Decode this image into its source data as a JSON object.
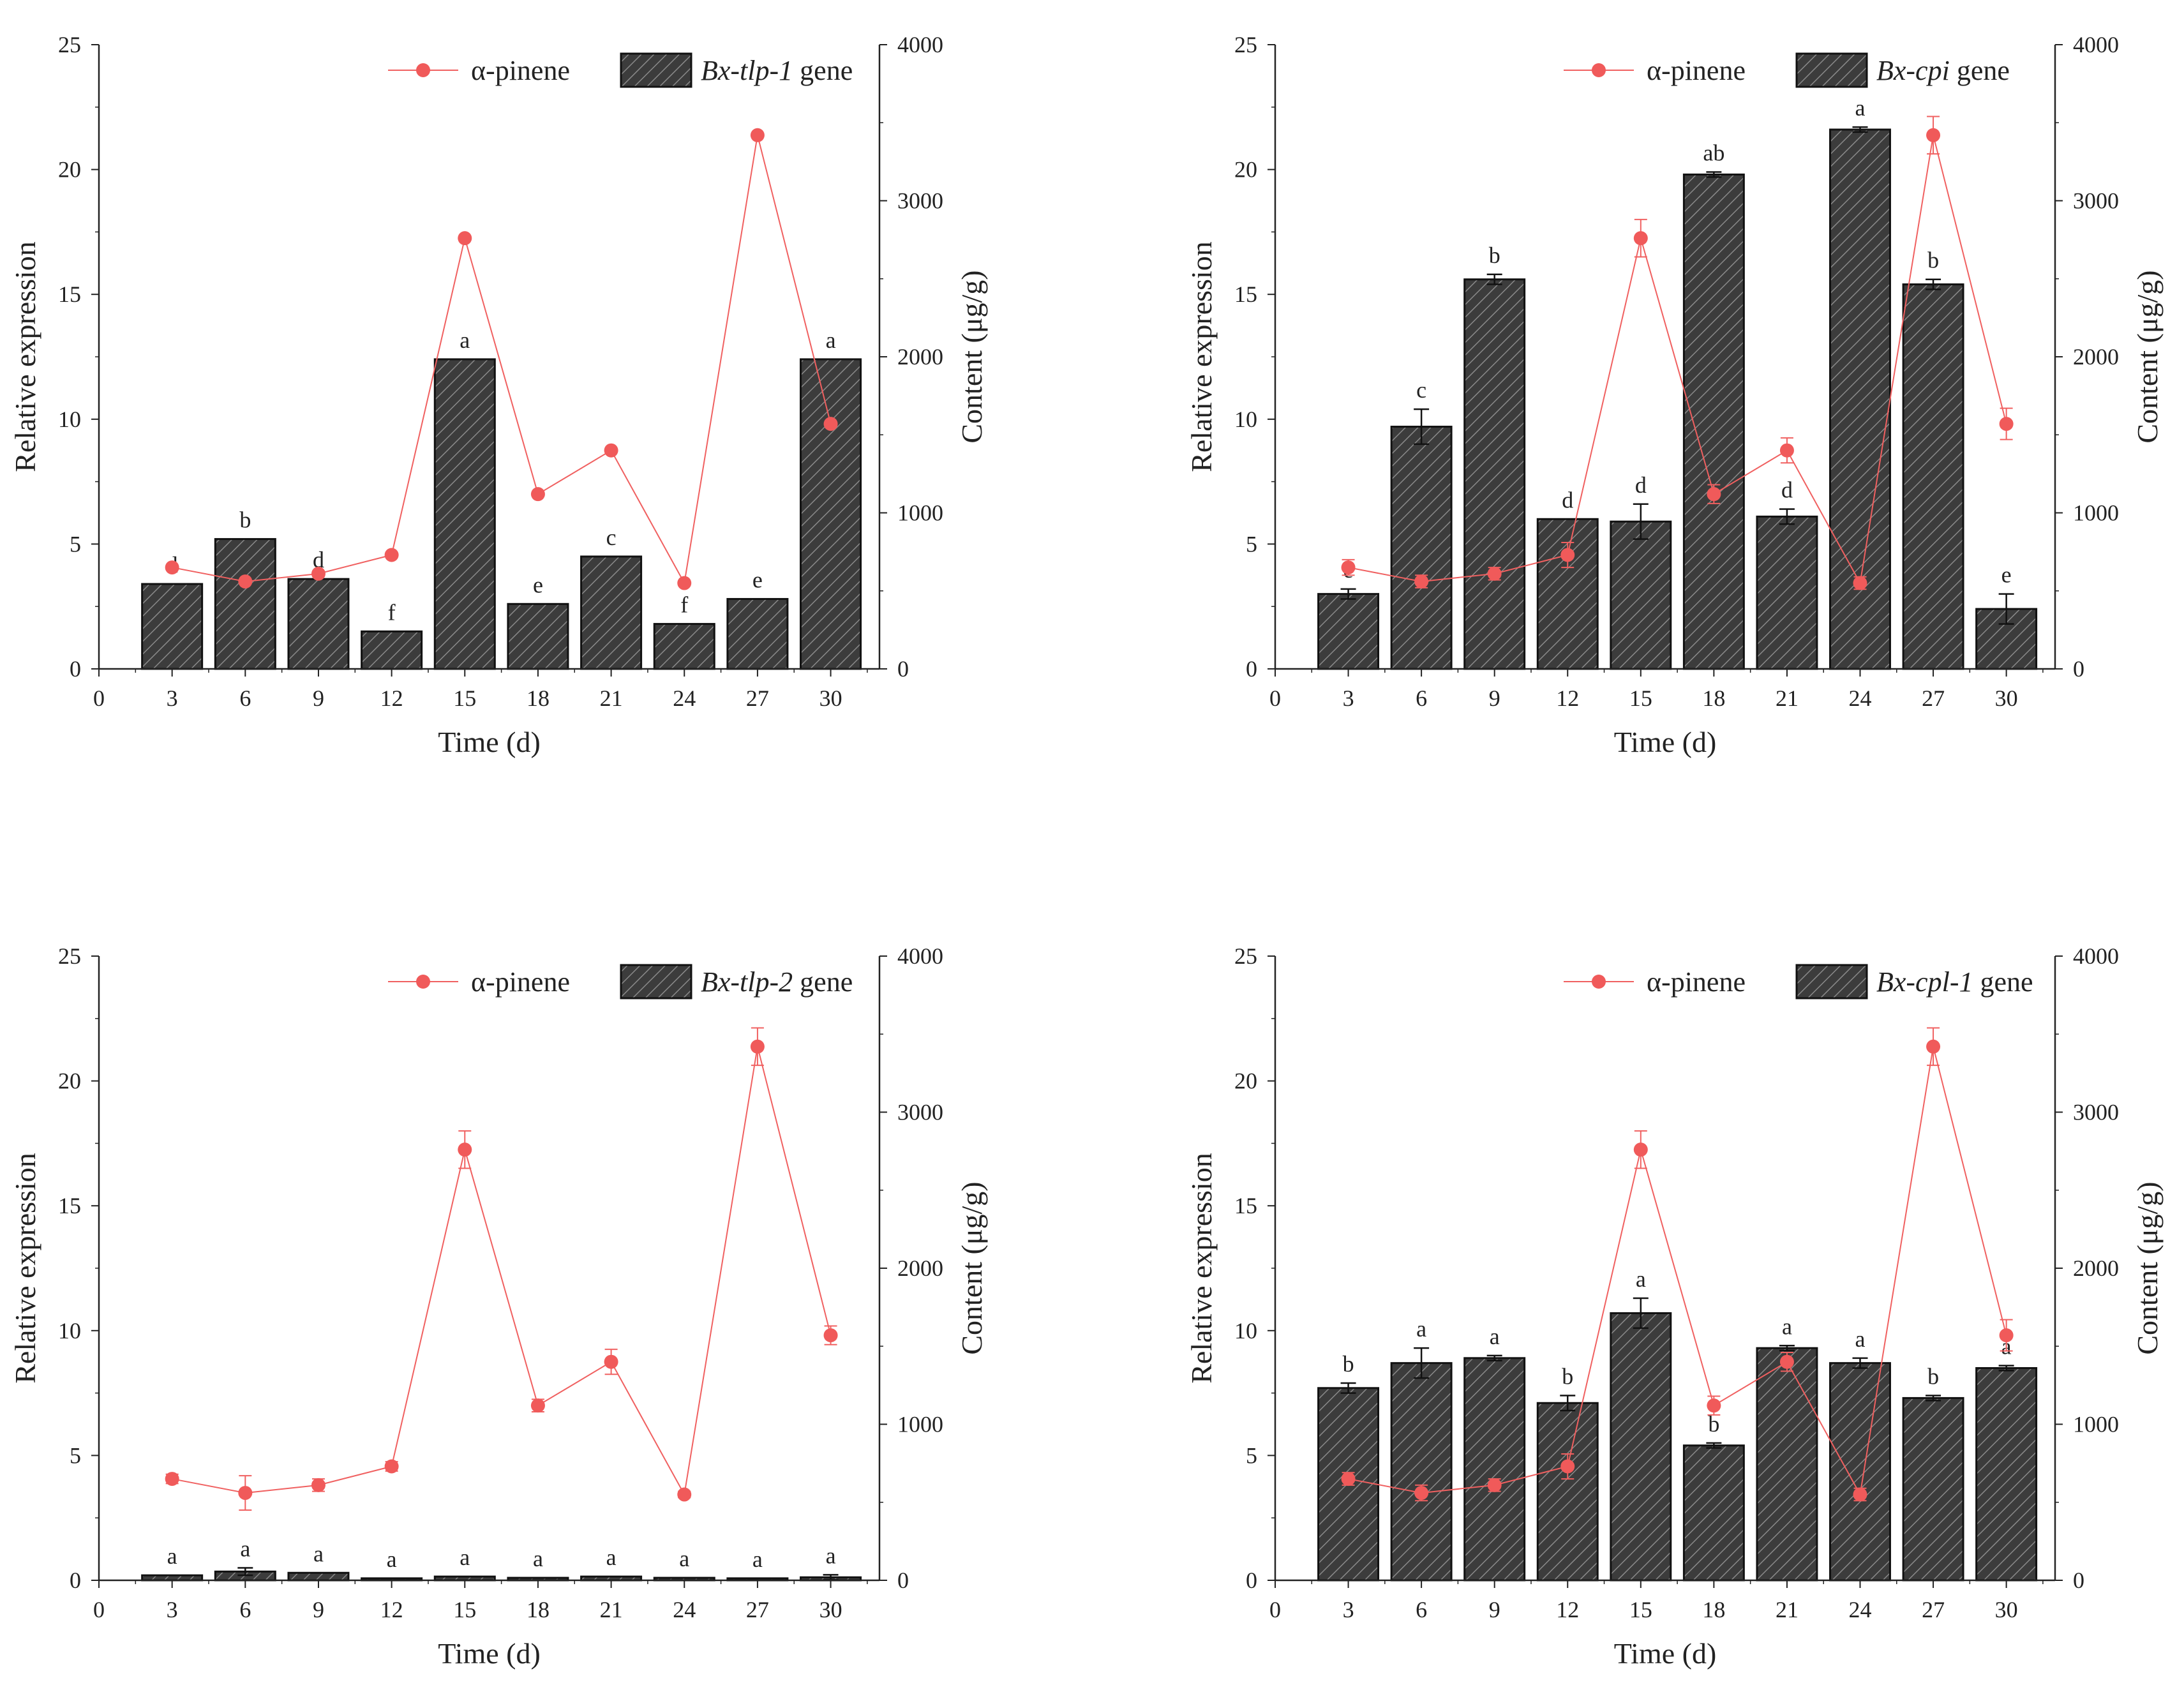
{
  "figure": {
    "colors": {
      "bar_fill": "#3a3a3a",
      "bar_stroke": "#111111",
      "line": "#f06060",
      "marker": "#f05a5a",
      "axis": "#222222"
    }
  },
  "chart_data": [
    {
      "type": "bar",
      "panel": "top-left",
      "xlabel": "Time (d)",
      "ylabel": "Relative expression",
      "y2label": "Content (μg/g)",
      "x_ticks": [
        "0",
        "3",
        "6",
        "9",
        "12",
        "15",
        "18",
        "21",
        "24",
        "27",
        "30"
      ],
      "y_ticks": [
        "0",
        "5",
        "10",
        "15",
        "20",
        "25"
      ],
      "y2_ticks": [
        "0",
        "1000",
        "2000",
        "3000",
        "4000"
      ],
      "xlim": [
        0,
        32
      ],
      "ylim": [
        0,
        25
      ],
      "y2lim": [
        0,
        4000
      ],
      "legend_position": "top-right",
      "legend": {
        "line": "α-pinene",
        "gene": "Bx-tlp-1",
        "suffix": " gene"
      },
      "x": [
        3,
        6,
        9,
        12,
        15,
        18,
        21,
        24,
        27,
        30
      ],
      "series": [
        {
          "name": "Bx-tlp-1 gene",
          "axis": "left",
          "type": "bar",
          "values": [
            3.4,
            5.2,
            3.6,
            1.5,
            12.4,
            2.6,
            4.5,
            1.8,
            2.8,
            12.4
          ],
          "errors": [
            0,
            0,
            0,
            0,
            0,
            0,
            0,
            0,
            0,
            0
          ],
          "labels": [
            "d",
            "b",
            "d",
            "f",
            "a",
            "e",
            "c",
            "f",
            "e",
            "a"
          ]
        },
        {
          "name": "α-pinene",
          "axis": "right",
          "type": "line",
          "values": [
            650,
            560,
            610,
            730,
            2760,
            1120,
            1400,
            550,
            3420,
            1570
          ],
          "errors": [
            0,
            0,
            0,
            0,
            0,
            0,
            0,
            0,
            0,
            0
          ]
        }
      ]
    },
    {
      "type": "bar",
      "panel": "top-right",
      "xlabel": "Time (d)",
      "ylabel": "Relative expression",
      "y2label": "Content (μg/g)",
      "x_ticks": [
        "0",
        "3",
        "6",
        "9",
        "12",
        "15",
        "18",
        "21",
        "24",
        "27",
        "30"
      ],
      "y_ticks": [
        "0",
        "5",
        "10",
        "15",
        "20",
        "25"
      ],
      "y2_ticks": [
        "0",
        "1000",
        "2000",
        "3000",
        "4000"
      ],
      "xlim": [
        0,
        32
      ],
      "ylim": [
        0,
        25
      ],
      "y2lim": [
        0,
        4000
      ],
      "legend_position": "top-right",
      "legend": {
        "line": "α-pinene",
        "gene": "Bx-cpi",
        "suffix": " gene"
      },
      "x": [
        3,
        6,
        9,
        12,
        15,
        18,
        21,
        24,
        27,
        30
      ],
      "series": [
        {
          "name": "Bx-cpi gene",
          "axis": "left",
          "type": "bar",
          "values": [
            3.0,
            9.7,
            15.6,
            6.0,
            5.9,
            19.8,
            6.1,
            21.6,
            15.4,
            2.4
          ],
          "errors": [
            0.2,
            0.7,
            0.2,
            0,
            0.7,
            0.1,
            0.3,
            0.1,
            0.2,
            0.6
          ],
          "labels": [
            "e",
            "c",
            "b",
            "d",
            "d",
            "ab",
            "d",
            "a",
            "b",
            "e"
          ]
        },
        {
          "name": "α-pinene",
          "axis": "right",
          "type": "line",
          "values": [
            650,
            560,
            610,
            730,
            2760,
            1120,
            1400,
            550,
            3420,
            1570
          ],
          "errors": [
            50,
            40,
            40,
            80,
            120,
            60,
            80,
            40,
            120,
            100
          ]
        }
      ]
    },
    {
      "type": "bar",
      "panel": "bottom-left",
      "xlabel": "Time (d)",
      "ylabel": "Relative expression",
      "y2label": "Content (μg/g)",
      "x_ticks": [
        "0",
        "3",
        "6",
        "9",
        "12",
        "15",
        "18",
        "21",
        "24",
        "27",
        "30"
      ],
      "y_ticks": [
        "0",
        "5",
        "10",
        "15",
        "20",
        "25"
      ],
      "y2_ticks": [
        "0",
        "1000",
        "2000",
        "3000",
        "4000"
      ],
      "xlim": [
        0,
        32
      ],
      "ylim": [
        0,
        25
      ],
      "y2lim": [
        0,
        4000
      ],
      "legend_position": "top-right",
      "legend": {
        "line": "α-pinene",
        "gene": "Bx-tlp-2",
        "suffix": " gene"
      },
      "x": [
        3,
        6,
        9,
        12,
        15,
        18,
        21,
        24,
        27,
        30
      ],
      "series": [
        {
          "name": "Bx-tlp-2 gene",
          "axis": "left",
          "type": "bar",
          "values": [
            0.2,
            0.35,
            0.3,
            0.08,
            0.15,
            0.1,
            0.15,
            0.1,
            0.08,
            0.12
          ],
          "errors": [
            0,
            0.15,
            0,
            0,
            0,
            0,
            0,
            0,
            0,
            0.1
          ],
          "labels": [
            "a",
            "a",
            "a",
            "a",
            "a",
            "a",
            "a",
            "a",
            "a",
            "a"
          ]
        },
        {
          "name": "α-pinene",
          "axis": "right",
          "type": "line",
          "values": [
            650,
            560,
            610,
            730,
            2760,
            1120,
            1400,
            550,
            3420,
            1570
          ],
          "errors": [
            30,
            110,
            40,
            30,
            120,
            40,
            80,
            20,
            120,
            60
          ]
        }
      ]
    },
    {
      "type": "bar",
      "panel": "bottom-right",
      "xlabel": "Time (d)",
      "ylabel": "Relative expression",
      "y2label": "Content (μg/g)",
      "x_ticks": [
        "0",
        "3",
        "6",
        "9",
        "12",
        "15",
        "18",
        "21",
        "24",
        "27",
        "30"
      ],
      "y_ticks": [
        "0",
        "5",
        "10",
        "15",
        "20",
        "25"
      ],
      "y2_ticks": [
        "0",
        "1000",
        "2000",
        "3000",
        "4000"
      ],
      "xlim": [
        0,
        32
      ],
      "ylim": [
        0,
        25
      ],
      "y2lim": [
        0,
        4000
      ],
      "legend_position": "top-right",
      "legend": {
        "line": "α-pinene",
        "gene": "Bx-cpl-1",
        "suffix": " gene"
      },
      "x": [
        3,
        6,
        9,
        12,
        15,
        18,
        21,
        24,
        27,
        30
      ],
      "series": [
        {
          "name": "Bx-cpl-1 gene",
          "axis": "left",
          "type": "bar",
          "values": [
            7.7,
            8.7,
            8.9,
            7.1,
            10.7,
            5.4,
            9.3,
            8.7,
            7.3,
            8.5
          ],
          "errors": [
            0.2,
            0.6,
            0.1,
            0.3,
            0.6,
            0.1,
            0.1,
            0.2,
            0.1,
            0.1
          ],
          "labels": [
            "b",
            "a",
            "a",
            "b",
            "a",
            "b",
            "a",
            "a",
            "b",
            "a"
          ]
        },
        {
          "name": "α-pinene",
          "axis": "right",
          "type": "line",
          "values": [
            650,
            560,
            610,
            730,
            2760,
            1120,
            1400,
            550,
            3420,
            1570
          ],
          "errors": [
            40,
            50,
            40,
            80,
            120,
            60,
            60,
            40,
            120,
            100
          ]
        }
      ]
    }
  ]
}
